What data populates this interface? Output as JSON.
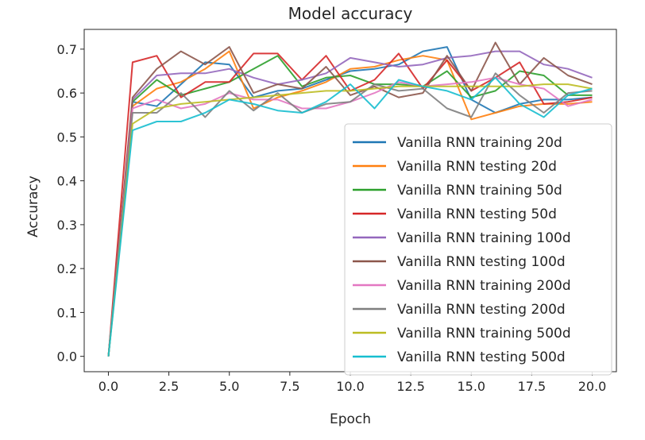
{
  "chart_data": {
    "type": "line",
    "title": "Model accuracy",
    "xlabel": "Epoch",
    "ylabel": "Accuracy",
    "xlim": [
      -1,
      21
    ],
    "ylim": [
      -0.035,
      0.745
    ],
    "xticks": [
      0,
      2.5,
      5,
      7.5,
      10,
      12.5,
      15,
      17.5,
      20
    ],
    "xtick_labels": [
      "0.0",
      "2.5",
      "5.0",
      "7.5",
      "10.0",
      "12.5",
      "15.0",
      "17.5",
      "20.0"
    ],
    "yticks": [
      0,
      0.1,
      0.2,
      0.3,
      0.4,
      0.5,
      0.6,
      0.7
    ],
    "ytick_labels": [
      "0.0",
      "0.1",
      "0.2",
      "0.3",
      "0.4",
      "0.5",
      "0.6",
      "0.7"
    ],
    "grid": false,
    "legend_position": "lower-right",
    "x": [
      0,
      1,
      2,
      3,
      4,
      5,
      6,
      7,
      8,
      9,
      10,
      11,
      12,
      13,
      14,
      15,
      16,
      17,
      18,
      19,
      20
    ],
    "series": [
      {
        "name": "Vanilla RNN training 20d",
        "color": "#1f77b4",
        "values": [
          0.0,
          0.58,
          0.57,
          0.62,
          0.67,
          0.665,
          0.59,
          0.605,
          0.61,
          0.63,
          0.65,
          0.655,
          0.665,
          0.695,
          0.705,
          0.585,
          0.555,
          0.575,
          0.585,
          0.585,
          0.59
        ]
      },
      {
        "name": "Vanilla RNN testing 20d",
        "color": "#ff7f0e",
        "values": [
          0.0,
          0.57,
          0.61,
          0.625,
          0.655,
          0.695,
          0.565,
          0.59,
          0.605,
          0.625,
          0.655,
          0.66,
          0.675,
          0.685,
          0.675,
          0.54,
          0.555,
          0.57,
          0.575,
          0.575,
          0.58
        ]
      },
      {
        "name": "Vanilla RNN training 50d",
        "color": "#2ca02c",
        "values": [
          0.0,
          0.58,
          0.63,
          0.595,
          0.61,
          0.625,
          0.655,
          0.685,
          0.615,
          0.635,
          0.64,
          0.62,
          0.62,
          0.615,
          0.65,
          0.59,
          0.605,
          0.65,
          0.64,
          0.595,
          0.595
        ]
      },
      {
        "name": "Vanilla RNN testing 50d",
        "color": "#d62728",
        "values": [
          0.0,
          0.67,
          0.685,
          0.59,
          0.625,
          0.625,
          0.69,
          0.69,
          0.63,
          0.685,
          0.605,
          0.63,
          0.69,
          0.61,
          0.675,
          0.605,
          0.635,
          0.67,
          0.575,
          0.58,
          0.59
        ]
      },
      {
        "name": "Vanilla RNN training 100d",
        "color": "#9467bd",
        "values": [
          0.0,
          0.585,
          0.64,
          0.645,
          0.645,
          0.655,
          0.635,
          0.62,
          0.63,
          0.645,
          0.68,
          0.67,
          0.66,
          0.665,
          0.68,
          0.685,
          0.695,
          0.695,
          0.665,
          0.655,
          0.635
        ]
      },
      {
        "name": "Vanilla RNN testing 100d",
        "color": "#8c564b",
        "values": [
          0.0,
          0.59,
          0.655,
          0.695,
          0.665,
          0.705,
          0.6,
          0.62,
          0.61,
          0.66,
          0.595,
          0.615,
          0.59,
          0.6,
          0.685,
          0.605,
          0.715,
          0.62,
          0.68,
          0.64,
          0.62
        ]
      },
      {
        "name": "Vanilla RNN training 200d",
        "color": "#e377c2",
        "values": [
          0.0,
          0.565,
          0.585,
          0.565,
          0.575,
          0.6,
          0.585,
          0.585,
          0.565,
          0.565,
          0.58,
          0.6,
          0.625,
          0.615,
          0.62,
          0.625,
          0.635,
          0.62,
          0.61,
          0.57,
          0.585
        ]
      },
      {
        "name": "Vanilla RNN testing 200d",
        "color": "#7f7f7f",
        "values": [
          0.0,
          0.555,
          0.555,
          0.6,
          0.545,
          0.605,
          0.56,
          0.6,
          0.555,
          0.575,
          0.58,
          0.62,
          0.605,
          0.61,
          0.565,
          0.545,
          0.645,
          0.595,
          0.555,
          0.6,
          0.605
        ]
      },
      {
        "name": "Vanilla RNN training 500d",
        "color": "#bcbd22",
        "values": [
          0.0,
          0.53,
          0.565,
          0.575,
          0.58,
          0.585,
          0.59,
          0.595,
          0.6,
          0.605,
          0.605,
          0.61,
          0.615,
          0.615,
          0.615,
          0.615,
          0.615,
          0.615,
          0.62,
          0.62,
          0.61
        ]
      },
      {
        "name": "Vanilla RNN testing 500d",
        "color": "#17becf",
        "values": [
          0.0,
          0.515,
          0.535,
          0.535,
          0.555,
          0.585,
          0.575,
          0.56,
          0.555,
          0.58,
          0.62,
          0.565,
          0.63,
          0.615,
          0.605,
          0.585,
          0.635,
          0.575,
          0.545,
          0.595,
          0.61
        ]
      }
    ]
  }
}
